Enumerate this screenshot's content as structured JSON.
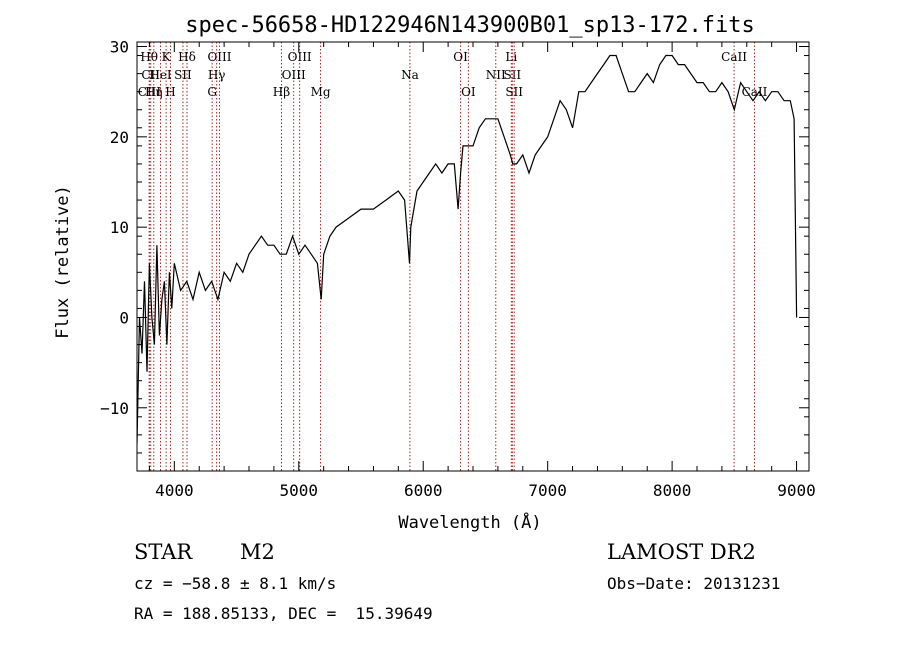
{
  "chart_data": {
    "type": "line",
    "title": "spec-56658-HD122946N143900B01_sp13-172.fits",
    "xlabel": "Wavelength (Å)",
    "ylabel": "Flux (relative)",
    "xlim": [
      3700,
      9100
    ],
    "ylim": [
      -17,
      30.5
    ],
    "x_ticks": [
      4000,
      5000,
      6000,
      7000,
      8000,
      9000
    ],
    "y_ticks": [
      -10,
      0,
      10,
      20,
      30
    ],
    "grid": false,
    "line_color": "#000000",
    "marker_color": "#b22222",
    "lines": [
      {
        "label": "Hθ",
        "x": 3798,
        "row": 0
      },
      {
        "label": "CII",
        "x": 3810,
        "row": 1
      },
      {
        "label": "CIII",
        "x": 3800,
        "row": 2
      },
      {
        "label": "K",
        "x": 3934,
        "row": 0
      },
      {
        "label": "HeI",
        "x": 3889,
        "row": 1
      },
      {
        "label": "Hη",
        "x": 3835,
        "row": 2
      },
      {
        "label": "Hδ",
        "x": 4102,
        "row": 0
      },
      {
        "label": "SII",
        "x": 4069,
        "row": 1
      },
      {
        "label": "H",
        "x": 3969,
        "row": 2
      },
      {
        "label": "OIII",
        "x": 4363,
        "row": 0
      },
      {
        "label": "Hγ",
        "x": 4340,
        "row": 1
      },
      {
        "label": "G",
        "x": 4304,
        "row": 2
      },
      {
        "label": "OIII",
        "x": 5007,
        "row": 0
      },
      {
        "label": "OIII",
        "x": 4959,
        "row": 1
      },
      {
        "label": "Hβ",
        "x": 4861,
        "row": 2
      },
      {
        "label": "Mg",
        "x": 5175,
        "row": 2
      },
      {
        "label": "Na",
        "x": 5893,
        "row": 1
      },
      {
        "label": "OI",
        "x": 6300,
        "row": 0
      },
      {
        "label": "OI",
        "x": 6363,
        "row": 2
      },
      {
        "label": "Li",
        "x": 6708,
        "row": 0
      },
      {
        "label": "NII",
        "x": 6583,
        "row": 1
      },
      {
        "label": "SII",
        "x": 6716,
        "row": 1
      },
      {
        "label": "SII",
        "x": 6731,
        "row": 2
      },
      {
        "label": "CaII",
        "x": 8498,
        "row": 0
      },
      {
        "label": "CaII",
        "x": 8662,
        "row": 2
      }
    ],
    "series": [
      {
        "x": [
          3700,
          3720,
          3740,
          3760,
          3780,
          3800,
          3820,
          3840,
          3860,
          3880,
          3900,
          3920,
          3940,
          3960,
          3980,
          4000,
          4050,
          4100,
          4150,
          4200,
          4250,
          4300,
          4350,
          4400,
          4450,
          4500,
          4550,
          4600,
          4650,
          4700,
          4750,
          4800,
          4850,
          4900,
          4950,
          5000,
          5050,
          5100,
          5150,
          5180,
          5200,
          5250,
          5300,
          5400,
          5500,
          5600,
          5700,
          5800,
          5850,
          5890,
          5900,
          5950,
          6000,
          6050,
          6100,
          6150,
          6200,
          6250,
          6280,
          6300,
          6320,
          6350,
          6400,
          6450,
          6500,
          6550,
          6600,
          6650,
          6700,
          6720,
          6750,
          6800,
          6850,
          6900,
          6950,
          7000,
          7050,
          7100,
          7150,
          7200,
          7250,
          7300,
          7350,
          7400,
          7450,
          7500,
          7550,
          7600,
          7650,
          7700,
          7750,
          7800,
          7850,
          7900,
          7950,
          8000,
          8050,
          8100,
          8150,
          8200,
          8250,
          8300,
          8350,
          8400,
          8450,
          8500,
          8550,
          8600,
          8650,
          8700,
          8750,
          8800,
          8850,
          8900,
          8950,
          8980,
          9000
        ],
        "y": [
          -14,
          0,
          -4,
          4,
          -6,
          6,
          0,
          -3,
          8,
          -2,
          2,
          4,
          -3,
          5,
          1,
          6,
          3,
          4,
          2,
          5,
          3,
          4,
          2,
          5,
          4,
          6,
          5,
          7,
          8,
          9,
          8,
          8,
          7,
          7,
          9,
          7,
          8,
          7,
          6,
          2,
          7,
          9,
          10,
          11,
          12,
          12,
          13,
          14,
          13,
          6,
          10,
          14,
          15,
          16,
          17,
          16,
          17,
          17,
          12,
          16,
          19,
          19,
          19,
          21,
          22,
          22,
          22,
          20,
          18,
          17,
          17,
          18,
          16,
          18,
          19,
          20,
          22,
          24,
          23,
          21,
          25,
          25,
          26,
          27,
          28,
          29,
          29,
          27,
          25,
          25,
          26,
          27,
          26,
          28,
          29,
          29,
          28,
          28,
          27,
          26,
          26,
          25,
          25,
          26,
          25,
          23,
          26,
          25,
          24,
          25,
          24,
          25,
          25,
          24,
          24,
          22,
          0
        ]
      }
    ]
  },
  "info": {
    "object_class": "STAR",
    "subclass": "M2",
    "survey": "LAMOST DR2",
    "redshift": "cz = −58.8 ± 8.1 km/s",
    "obs_date": "Obs−Date: 20131231",
    "coords": "RA = 188.85133, DEC =  15.39649"
  }
}
